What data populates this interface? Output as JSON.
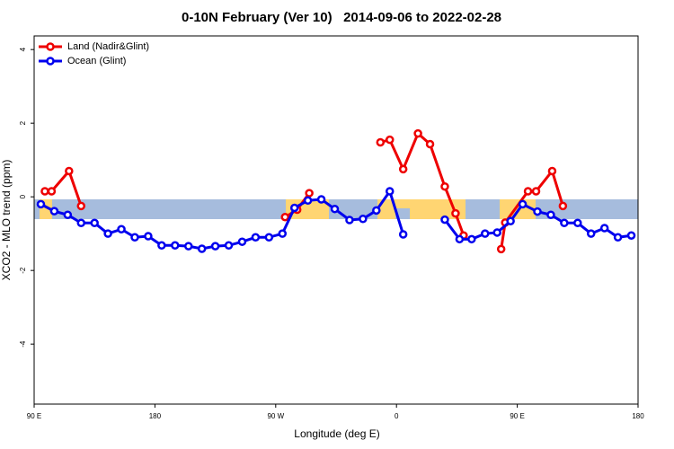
{
  "chart_data": {
    "type": "line",
    "title": "0-10N February (Ver 10)   2014-09-06 to 2022-02-28",
    "xlabel": "Longitude (deg E)",
    "ylabel": "XCO2 - MLO trend (ppm)",
    "xlim": [
      90,
      540
    ],
    "xticks": [
      {
        "value": 90,
        "label": "90 E"
      },
      180,
      {
        "value": 270,
        "label": "90 W"
      },
      {
        "value": 360,
        "label": "0"
      },
      {
        "value": 450,
        "label": "90 E"
      },
      {
        "value": 540,
        "label": "180"
      }
    ],
    "ylim": [
      -5.63,
      4.37
    ],
    "yticks": [
      -4,
      -2,
      0,
      2,
      4
    ],
    "legend": "top-left",
    "series": [
      {
        "name": "Land (Nadir&Glint)",
        "color": "#ee0000",
        "x": [
          98,
          103,
          116,
          125,
          null,
          277,
          286,
          295,
          null,
          348,
          355,
          365,
          376,
          385,
          396,
          404,
          410,
          null,
          438,
          441,
          458,
          464,
          476,
          484
        ],
        "values": [
          0.15,
          0.15,
          0.7,
          -0.25,
          null,
          -0.55,
          -0.35,
          0.1,
          null,
          1.48,
          1.55,
          0.75,
          1.72,
          1.43,
          0.28,
          -0.45,
          -1.05,
          null,
          -1.42,
          -0.7,
          0.15,
          0.15,
          0.7,
          -0.25
        ]
      },
      {
        "name": "Ocean (Glint)",
        "color": "#0000ee",
        "x": [
          95,
          105,
          115,
          125,
          135,
          145,
          155,
          165,
          175,
          185,
          195,
          205,
          215,
          225,
          235,
          245,
          255,
          265,
          275,
          284,
          294,
          304,
          314,
          325,
          335,
          345,
          355,
          365,
          null,
          396,
          407,
          416,
          426,
          435,
          445,
          454,
          465,
          475,
          485,
          495,
          505,
          515,
          525,
          535
        ],
        "values": [
          -0.2,
          -0.39,
          -0.49,
          -0.71,
          -0.71,
          -1.0,
          -0.88,
          -1.1,
          -1.07,
          -1.32,
          -1.32,
          -1.34,
          -1.41,
          -1.34,
          -1.32,
          -1.22,
          -1.1,
          -1.1,
          -1.0,
          -0.3,
          -0.1,
          -0.07,
          -0.33,
          -0.63,
          -0.6,
          -0.37,
          0.15,
          -1.02,
          null,
          -0.62,
          -1.15,
          -1.15,
          -1.0,
          -0.97,
          -0.66,
          -0.2,
          -0.4,
          -0.49,
          -0.71,
          -0.71,
          -1.0,
          -0.85,
          -1.1,
          -1.05
        ]
      }
    ]
  }
}
